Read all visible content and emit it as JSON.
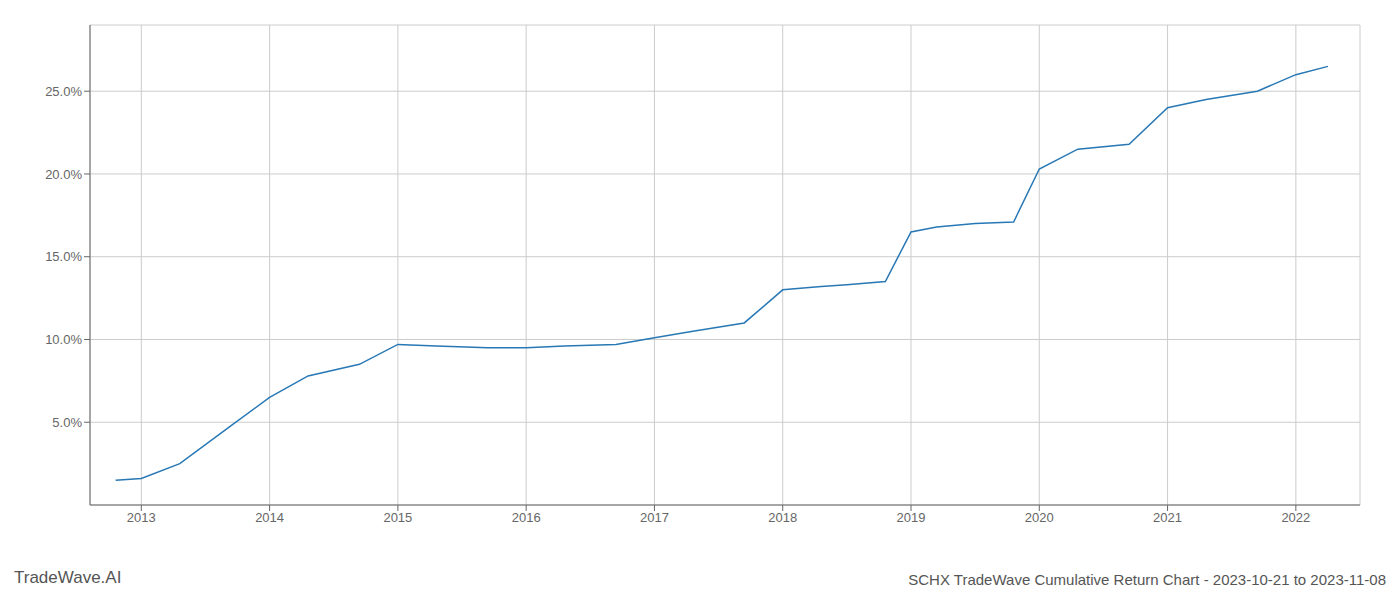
{
  "chart_data": {
    "type": "line",
    "title": "SCHX TradeWave Cumulative Return Chart - 2023-10-21 to 2023-11-08",
    "annotations": [
      "TradeWave.AI"
    ],
    "color": "#2878b5",
    "x": [
      2012.8,
      2013.0,
      2013.3,
      2013.7,
      2014.0,
      2014.3,
      2014.7,
      2015.0,
      2015.3,
      2015.7,
      2016.0,
      2016.3,
      2016.7,
      2017.0,
      2017.3,
      2017.7,
      2018.0,
      2018.3,
      2018.5,
      2018.8,
      2019.0,
      2019.2,
      2019.5,
      2019.8,
      2020.0,
      2020.3,
      2020.7,
      2021.0,
      2021.3,
      2021.7,
      2022.0,
      2022.25
    ],
    "values": [
      1.5,
      1.6,
      2.5,
      4.8,
      6.5,
      7.8,
      8.5,
      9.7,
      9.6,
      9.5,
      9.5,
      9.6,
      9.7,
      10.1,
      10.5,
      11.0,
      13.0,
      13.2,
      13.3,
      13.5,
      16.5,
      16.8,
      17.0,
      17.1,
      20.3,
      21.5,
      21.8,
      24.0,
      24.5,
      25.0,
      26.0,
      26.5
    ],
    "xlim": [
      2012.6,
      2022.5
    ],
    "xticks": [
      2013,
      2014,
      2015,
      2016,
      2017,
      2018,
      2019,
      2020,
      2021,
      2022
    ],
    "ylim": [
      0,
      29
    ],
    "yticks": [
      {
        "value": 5.0,
        "label": "5.0%"
      },
      {
        "value": 10.0,
        "label": "10.0%"
      },
      {
        "value": 15.0,
        "label": "15.0%"
      },
      {
        "value": 20.0,
        "label": "20.0%"
      },
      {
        "value": 25.0,
        "label": "25.0%"
      }
    ],
    "grid": true
  }
}
